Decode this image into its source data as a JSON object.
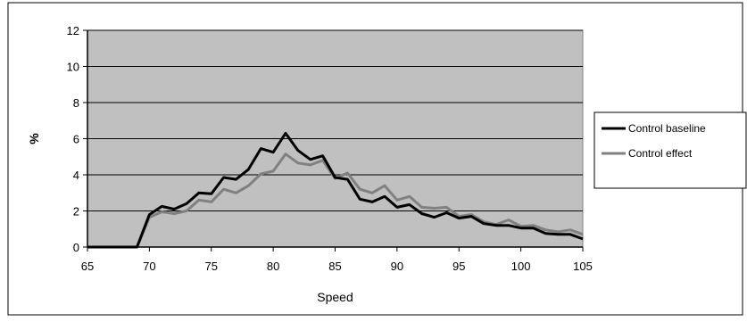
{
  "chart_data": {
    "type": "line",
    "title": "",
    "xlabel": "Speed",
    "ylabel": "%",
    "xlim": [
      65,
      105
    ],
    "ylim": [
      0,
      12
    ],
    "x_ticks": [
      "65",
      "70",
      "75",
      "80",
      "85",
      "90",
      "95",
      "100",
      "105"
    ],
    "y_ticks": [
      "0",
      "2",
      "4",
      "6",
      "8",
      "10",
      "12"
    ],
    "grid": "horizontal",
    "legend_position": "right",
    "plot_background": "#c0c0c0",
    "x": [
      65,
      66,
      67,
      68,
      69,
      70,
      71,
      72,
      73,
      74,
      75,
      76,
      77,
      78,
      79,
      80,
      81,
      82,
      83,
      84,
      85,
      86,
      87,
      88,
      89,
      90,
      91,
      92,
      93,
      94,
      95,
      96,
      97,
      98,
      99,
      100,
      101,
      102,
      103,
      104,
      105
    ],
    "series": [
      {
        "name": "Control baseline",
        "color": "#000000",
        "values": [
          0,
          0,
          0,
          0,
          0,
          1.8,
          2.25,
          2.1,
          2.4,
          3.0,
          2.95,
          3.85,
          3.75,
          4.3,
          5.45,
          5.25,
          6.3,
          5.35,
          4.85,
          5.05,
          3.85,
          3.75,
          2.65,
          2.5,
          2.8,
          2.2,
          2.35,
          1.85,
          1.65,
          1.9,
          1.6,
          1.7,
          1.3,
          1.2,
          1.2,
          1.05,
          1.05,
          0.75,
          0.7,
          0.7,
          0.45
        ]
      },
      {
        "name": "Control effect",
        "color": "#808080",
        "values": [
          0,
          0,
          0,
          0,
          0,
          1.65,
          1.95,
          1.85,
          2.0,
          2.6,
          2.5,
          3.2,
          3.0,
          3.4,
          4.05,
          4.2,
          5.15,
          4.65,
          4.55,
          4.8,
          3.8,
          4.1,
          3.2,
          3.0,
          3.4,
          2.6,
          2.8,
          2.2,
          2.15,
          2.2,
          1.7,
          1.8,
          1.4,
          1.25,
          1.5,
          1.15,
          1.2,
          0.95,
          0.85,
          0.95,
          0.7
        ]
      }
    ]
  }
}
